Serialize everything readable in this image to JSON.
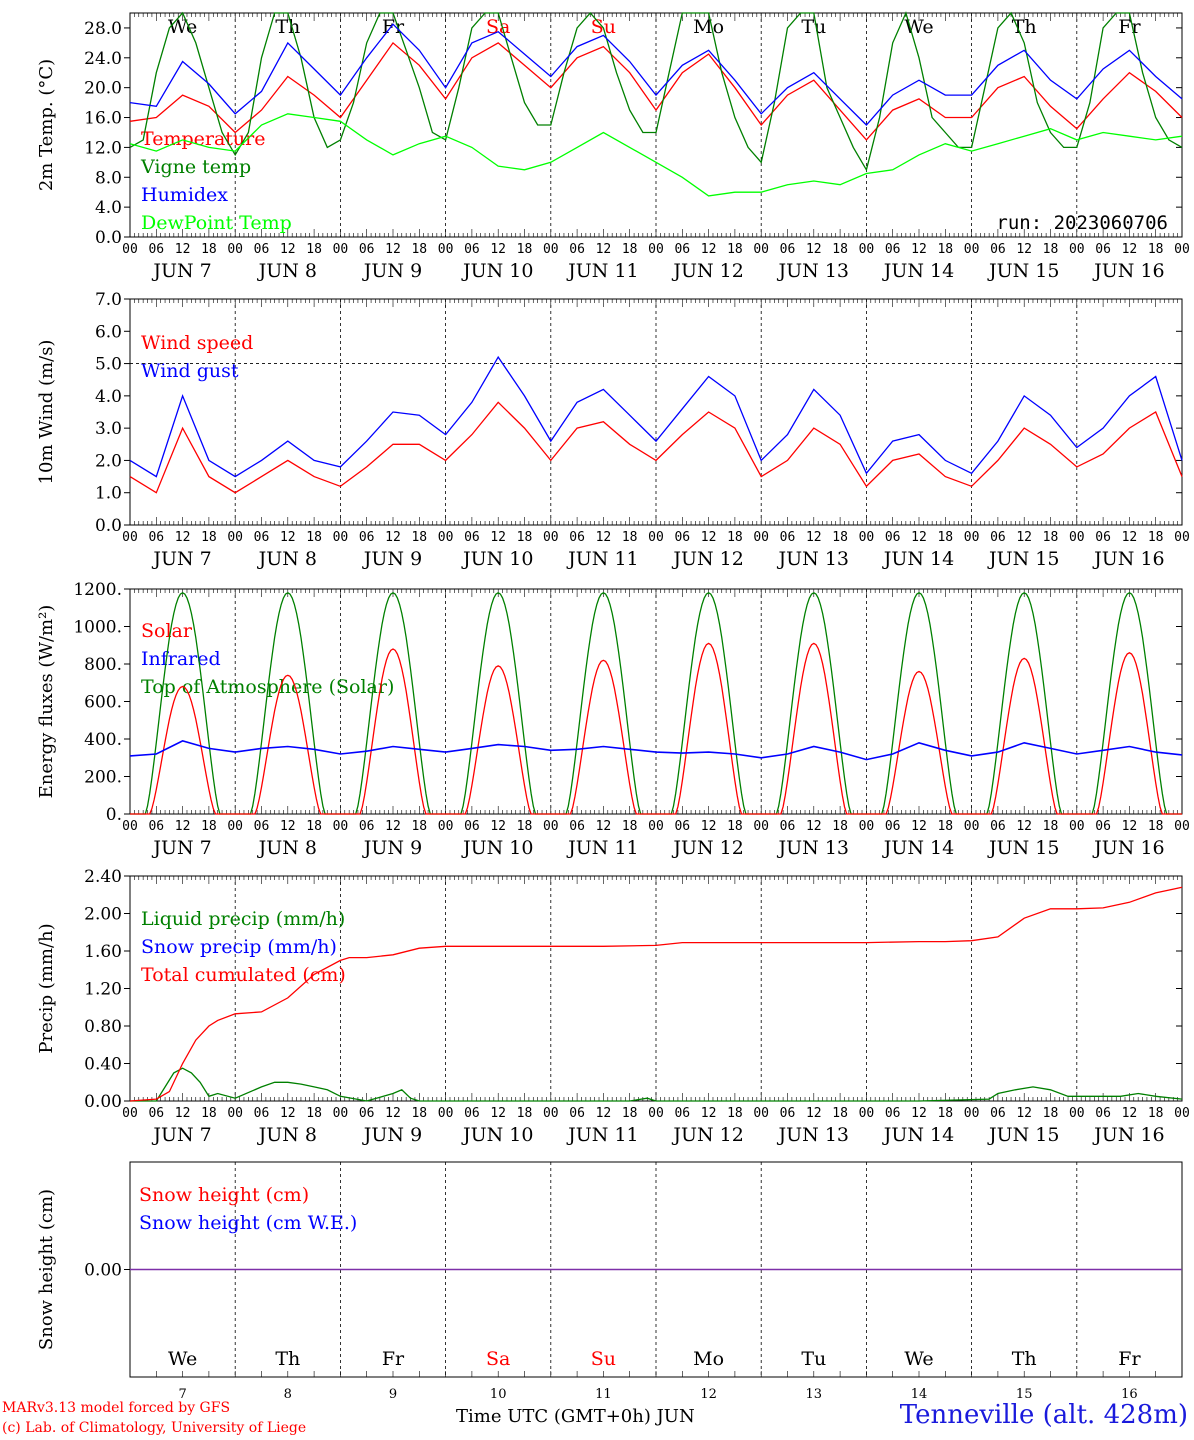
{
  "chart_data": [
    {
      "type": "line",
      "ylabel": "2m Temp. (°C)",
      "ylim": [
        0,
        30
      ],
      "ytick_labels": [
        "0.0",
        "4.0",
        "8.0",
        "12.0",
        "16.0",
        "20.0",
        "24.0",
        "28.0"
      ],
      "x_unit": "hours since JUN 7 00 UTC",
      "x_range": [
        0,
        240
      ],
      "weekday_labels": [
        {
          "text": "We",
          "color": "#000000"
        },
        {
          "text": "Th",
          "color": "#000000"
        },
        {
          "text": "Fr",
          "color": "#000000"
        },
        {
          "text": "Sa",
          "color": "#ff0000"
        },
        {
          "text": "Su",
          "color": "#ff0000"
        },
        {
          "text": "Mo",
          "color": "#000000"
        },
        {
          "text": "Tu",
          "color": "#000000"
        },
        {
          "text": "We",
          "color": "#000000"
        },
        {
          "text": "Th",
          "color": "#000000"
        },
        {
          "text": "Fr",
          "color": "#000000"
        }
      ],
      "annotation": "run: 2023060706",
      "series": [
        {
          "name": "Temperature",
          "color": "#ff0000",
          "x": [
            0,
            6,
            12,
            18,
            24,
            30,
            36,
            42,
            48,
            54,
            60,
            66,
            72,
            78,
            84,
            90,
            96,
            102,
            108,
            114,
            120,
            126,
            132,
            138,
            144,
            150,
            156,
            162,
            168,
            174,
            180,
            186,
            192,
            198,
            204,
            210,
            216,
            222,
            228,
            234,
            240
          ],
          "y": [
            15.5,
            16.0,
            19.0,
            17.5,
            14.0,
            17.0,
            21.5,
            19.0,
            16.0,
            21.0,
            26.0,
            23.0,
            18.5,
            24.0,
            26.0,
            23.0,
            20.0,
            24.0,
            25.5,
            22.0,
            17.0,
            22.0,
            24.5,
            20.0,
            15.0,
            19.0,
            21.0,
            17.0,
            13.0,
            17.0,
            18.5,
            16.0,
            16.0,
            20.0,
            21.5,
            17.5,
            14.5,
            18.5,
            22.0,
            19.5,
            16.0
          ]
        },
        {
          "name": "Vigne temp",
          "color": "#008000",
          "x": [
            0,
            3,
            6,
            9,
            12,
            15,
            18,
            21,
            24,
            27,
            30,
            33,
            36,
            39,
            42,
            45,
            48,
            51,
            54,
            57,
            60,
            63,
            66,
            69,
            72,
            75,
            78,
            81,
            84,
            87,
            90,
            93,
            96,
            99,
            102,
            105,
            108,
            111,
            114,
            117,
            120,
            123,
            126,
            129,
            132,
            135,
            138,
            141,
            144,
            147,
            150,
            153,
            156,
            159,
            162,
            165,
            168,
            171,
            174,
            177,
            180,
            183,
            186,
            189,
            192,
            195,
            198,
            201,
            204,
            207,
            210,
            213,
            216,
            219,
            222,
            225,
            228,
            231,
            234,
            237,
            240
          ],
          "y": [
            12.0,
            13.0,
            22.0,
            28.0,
            30.0,
            26.0,
            20.0,
            14.0,
            11.0,
            14.0,
            24.0,
            30.0,
            30.0,
            24.0,
            16.0,
            12.0,
            13.0,
            18.0,
            26.0,
            30.0,
            30.0,
            25.0,
            20.0,
            14.0,
            13.0,
            20.0,
            28.0,
            30.0,
            30.0,
            24.0,
            18.0,
            15.0,
            15.0,
            22.0,
            28.0,
            30.0,
            28.0,
            22.0,
            17.0,
            14.0,
            14.0,
            22.0,
            30.0,
            30.0,
            30.0,
            22.0,
            16.0,
            12.0,
            10.0,
            18.0,
            28.0,
            30.0,
            30.0,
            20.0,
            16.0,
            12.0,
            9.0,
            16.0,
            26.0,
            30.0,
            24.0,
            16.0,
            14.0,
            12.0,
            12.0,
            20.0,
            28.0,
            30.0,
            26.0,
            18.0,
            14.0,
            12.0,
            12.0,
            18.0,
            28.0,
            30.0,
            30.0,
            22.0,
            16.0,
            13.0,
            12.0
          ]
        },
        {
          "name": "Humidex",
          "color": "#0000ff",
          "x": [
            0,
            6,
            12,
            18,
            24,
            30,
            36,
            42,
            48,
            54,
            60,
            66,
            72,
            78,
            84,
            90,
            96,
            102,
            108,
            114,
            120,
            126,
            132,
            138,
            144,
            150,
            156,
            162,
            168,
            174,
            180,
            186,
            192,
            198,
            204,
            210,
            216,
            222,
            228,
            234,
            240
          ],
          "y": [
            18.0,
            17.5,
            23.5,
            20.5,
            16.5,
            19.5,
            26.0,
            22.5,
            19.0,
            24.0,
            28.5,
            25.0,
            20.0,
            26.0,
            27.5,
            24.5,
            21.5,
            25.5,
            27.0,
            23.5,
            19.0,
            23.0,
            25.0,
            21.0,
            16.5,
            20.0,
            22.0,
            18.5,
            15.0,
            19.0,
            21.0,
            19.0,
            19.0,
            23.0,
            25.0,
            21.0,
            18.5,
            22.5,
            25.0,
            21.5,
            18.5
          ]
        },
        {
          "name": "DewPoint Temp",
          "color": "#00ff00",
          "x": [
            0,
            6,
            12,
            18,
            24,
            30,
            36,
            42,
            48,
            54,
            60,
            66,
            72,
            78,
            84,
            90,
            96,
            102,
            108,
            114,
            120,
            126,
            132,
            138,
            144,
            150,
            156,
            162,
            168,
            174,
            180,
            186,
            192,
            198,
            204,
            210,
            216,
            222,
            228,
            234,
            240
          ],
          "y": [
            12.5,
            11.5,
            13.0,
            12.0,
            11.5,
            15.0,
            16.5,
            16.0,
            15.5,
            13.0,
            11.0,
            12.5,
            13.5,
            12.0,
            9.5,
            9.0,
            10.0,
            12.0,
            14.0,
            12.0,
            10.0,
            8.0,
            5.5,
            6.0,
            6.0,
            7.0,
            7.5,
            7.0,
            8.5,
            9.0,
            11.0,
            12.5,
            11.5,
            12.5,
            13.5,
            14.5,
            13.0,
            14.0,
            13.5,
            13.0,
            13.5
          ]
        }
      ]
    },
    {
      "type": "line",
      "ylabel": "10m Wind (m/s)",
      "ylim": [
        0,
        7
      ],
      "ytick_labels": [
        "0.0",
        "1.0",
        "2.0",
        "3.0",
        "4.0",
        "5.0",
        "6.0",
        "7.0"
      ],
      "reference_line_y": 5.0,
      "x_range": [
        0,
        240
      ],
      "series": [
        {
          "name": "Wind speed",
          "color": "#ff0000",
          "x": [
            0,
            6,
            12,
            18,
            24,
            30,
            36,
            42,
            48,
            54,
            60,
            66,
            72,
            78,
            84,
            90,
            96,
            102,
            108,
            114,
            120,
            126,
            132,
            138,
            144,
            150,
            156,
            162,
            168,
            174,
            180,
            186,
            192,
            198,
            204,
            210,
            216,
            222,
            228,
            234,
            240
          ],
          "y": [
            1.5,
            1.0,
            3.0,
            1.5,
            1.0,
            1.5,
            2.0,
            1.5,
            1.2,
            1.8,
            2.5,
            2.5,
            2.0,
            2.8,
            3.8,
            3.0,
            2.0,
            3.0,
            3.2,
            2.5,
            2.0,
            2.8,
            3.5,
            3.0,
            1.5,
            2.0,
            3.0,
            2.5,
            1.2,
            2.0,
            2.2,
            1.5,
            1.2,
            2.0,
            3.0,
            2.5,
            1.8,
            2.2,
            3.0,
            3.5,
            1.5
          ]
        },
        {
          "name": "Wind gust",
          "color": "#0000ff",
          "x": [
            0,
            6,
            12,
            18,
            24,
            30,
            36,
            42,
            48,
            54,
            60,
            66,
            72,
            78,
            84,
            90,
            96,
            102,
            108,
            114,
            120,
            126,
            132,
            138,
            144,
            150,
            156,
            162,
            168,
            174,
            180,
            186,
            192,
            198,
            204,
            210,
            216,
            222,
            228,
            234,
            240
          ],
          "y": [
            2.0,
            1.5,
            4.0,
            2.0,
            1.5,
            2.0,
            2.6,
            2.0,
            1.8,
            2.6,
            3.5,
            3.4,
            2.8,
            3.8,
            5.2,
            4.0,
            2.6,
            3.8,
            4.2,
            3.4,
            2.6,
            3.6,
            4.6,
            4.0,
            2.0,
            2.8,
            4.2,
            3.4,
            1.6,
            2.6,
            2.8,
            2.0,
            1.6,
            2.6,
            4.0,
            3.4,
            2.4,
            3.0,
            4.0,
            4.6,
            2.0
          ]
        }
      ]
    },
    {
      "type": "line",
      "ylabel": "Energy fluxes (W/m²)",
      "ylim": [
        0,
        1200
      ],
      "ytick_labels": [
        "0.",
        "200.",
        "400.",
        "600.",
        "800.",
        "1000.",
        "1200."
      ],
      "x_range": [
        0,
        240
      ],
      "daily_peak_hour": 12,
      "series": [
        {
          "name": "Solar",
          "color": "#ff0000",
          "daily_peaks": [
            680,
            740,
            880,
            790,
            820,
            910,
            910,
            760,
            830,
            860
          ]
        },
        {
          "name": "Infrared",
          "color": "#0000ff",
          "x": [
            0,
            6,
            12,
            18,
            24,
            30,
            36,
            42,
            48,
            54,
            60,
            66,
            72,
            78,
            84,
            90,
            96,
            102,
            108,
            114,
            120,
            126,
            132,
            138,
            144,
            150,
            156,
            162,
            168,
            174,
            180,
            186,
            192,
            198,
            204,
            210,
            216,
            222,
            228,
            234,
            240
          ],
          "y": [
            310,
            320,
            390,
            350,
            330,
            350,
            360,
            345,
            320,
            335,
            360,
            345,
            330,
            350,
            370,
            360,
            340,
            345,
            360,
            345,
            330,
            325,
            330,
            320,
            300,
            320,
            360,
            330,
            290,
            320,
            380,
            340,
            310,
            330,
            380,
            350,
            320,
            340,
            360,
            330,
            315
          ]
        },
        {
          "name": "Top of Atmosphere (Solar)",
          "color": "#008000",
          "daily_peaks": [
            1180,
            1180,
            1180,
            1180,
            1180,
            1180,
            1180,
            1180,
            1180,
            1180
          ]
        }
      ]
    },
    {
      "type": "line",
      "ylabel": "Precip (mm/h)",
      "ylim": [
        0,
        2.4
      ],
      "ytick_labels": [
        "0.00",
        "0.40",
        "0.80",
        "1.20",
        "1.60",
        "2.00",
        "2.40"
      ],
      "x_range": [
        0,
        240
      ],
      "series": [
        {
          "name": "Liquid precip (mm/h)",
          "color": "#008000",
          "x": [
            0,
            6,
            8,
            10,
            12,
            14,
            16,
            18,
            20,
            24,
            30,
            33,
            36,
            39,
            42,
            45,
            48,
            54,
            60,
            62,
            64,
            66,
            72,
            114,
            118,
            120,
            126,
            180,
            196,
            198,
            202,
            206,
            210,
            214,
            226,
            230,
            234,
            240
          ],
          "y": [
            0,
            0,
            0.15,
            0.3,
            0.35,
            0.3,
            0.2,
            0.05,
            0.08,
            0.03,
            0.15,
            0.2,
            0.2,
            0.18,
            0.15,
            0.12,
            0.05,
            0,
            0.08,
            0.12,
            0.03,
            0,
            0,
            0,
            0.03,
            0,
            0,
            0,
            0.02,
            0.08,
            0.12,
            0.15,
            0.12,
            0.05,
            0.05,
            0.08,
            0.05,
            0.02
          ]
        },
        {
          "name": "Snow precip (mm/h)",
          "color": "#0000ff",
          "x": [],
          "y": []
        },
        {
          "name": "Total cumulated (cm)",
          "color": "#ff0000",
          "x": [
            0,
            6,
            9,
            12,
            15,
            18,
            20,
            24,
            30,
            36,
            42,
            48,
            50,
            54,
            60,
            66,
            72,
            84,
            96,
            108,
            120,
            126,
            132,
            144,
            156,
            168,
            180,
            186,
            192,
            198,
            204,
            210,
            216,
            222,
            228,
            234,
            240
          ],
          "y": [
            0,
            0.02,
            0.1,
            0.4,
            0.65,
            0.8,
            0.86,
            0.93,
            0.95,
            1.1,
            1.35,
            1.5,
            1.53,
            1.53,
            1.56,
            1.63,
            1.65,
            1.65,
            1.65,
            1.65,
            1.66,
            1.69,
            1.69,
            1.69,
            1.69,
            1.69,
            1.7,
            1.7,
            1.71,
            1.75,
            1.95,
            2.05,
            2.05,
            2.06,
            2.12,
            2.22,
            2.28
          ]
        }
      ]
    },
    {
      "type": "line",
      "ylabel": "Snow height (cm)",
      "ylim": [
        -1,
        1
      ],
      "ytick_labels": [
        "0.00"
      ],
      "x_range": [
        0,
        240
      ],
      "series": [
        {
          "name": "Snow height (cm)",
          "color": "#ff0000",
          "x": [
            0,
            240
          ],
          "y": [
            0,
            0
          ]
        },
        {
          "name": "Snow height (cm W.E.)",
          "color": "#0000ff",
          "x": [
            0,
            240
          ],
          "y": [
            0,
            0
          ]
        }
      ]
    }
  ],
  "x_axis": {
    "hour_tick_labels": [
      "00",
      "06",
      "12",
      "18"
    ],
    "final_hour_label": "00",
    "date_labels": [
      "JUN   7",
      "JUN   8",
      "JUN   9",
      "JUN 10",
      "JUN 11",
      "JUN 12",
      "JUN 13",
      "JUN 14",
      "JUN 15",
      "JUN 16"
    ],
    "bottom_day_numbers": [
      "7",
      "8",
      "9",
      "10",
      "11",
      "12",
      "13",
      "14",
      "15",
      "16"
    ],
    "title": "Time UTC (GMT+0h) JUN"
  },
  "footer": {
    "credit_line1": "MARv3.13 model forced by GFS",
    "credit_line2": "(c) Lab. of Climatology, University of Liege",
    "station": "Tenneville (alt. 428m)"
  }
}
